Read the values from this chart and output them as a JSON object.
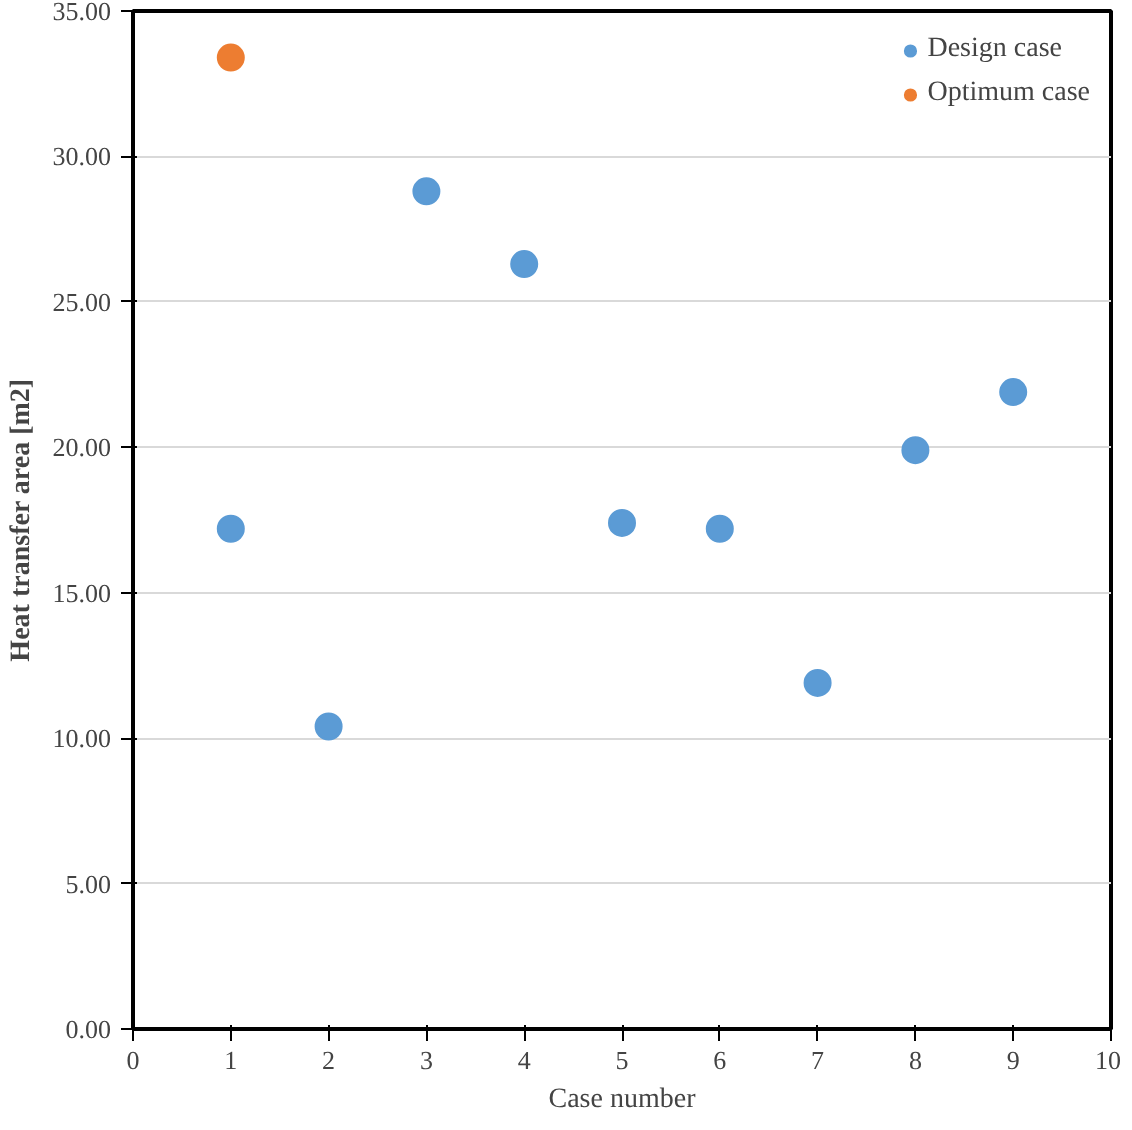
{
  "chart_data": {
    "type": "scatter",
    "xlabel": "Case number",
    "ylabel": "Heat transfer area [m2]",
    "xlim": [
      0,
      10
    ],
    "xticks": [
      0,
      1,
      2,
      3,
      4,
      5,
      6,
      7,
      8,
      9,
      10
    ],
    "ylim": [
      0,
      35
    ],
    "yticks": [
      {
        "value": 0,
        "label": "0.00"
      },
      {
        "value": 5,
        "label": "5.00"
      },
      {
        "value": 10,
        "label": "10.00"
      },
      {
        "value": 15,
        "label": "15.00"
      },
      {
        "value": 20,
        "label": "20.00"
      },
      {
        "value": 25,
        "label": "25.00"
      },
      {
        "value": 30,
        "label": "30.00"
      },
      {
        "value": 35,
        "label": "35.00"
      }
    ],
    "grid": "y",
    "legend": "top right",
    "marker": "circle",
    "series": [
      {
        "name": "Design case",
        "color": "#5b9bd5",
        "x": [
          1,
          2,
          3,
          4,
          5,
          6,
          7,
          8,
          9
        ],
        "values": [
          17.2,
          10.4,
          28.8,
          26.3,
          17.4,
          17.2,
          11.9,
          19.9,
          21.9
        ]
      },
      {
        "name": "Optimum case",
        "color": "#ed7d31",
        "x": [
          1
        ],
        "values": [
          33.4
        ]
      }
    ]
  }
}
